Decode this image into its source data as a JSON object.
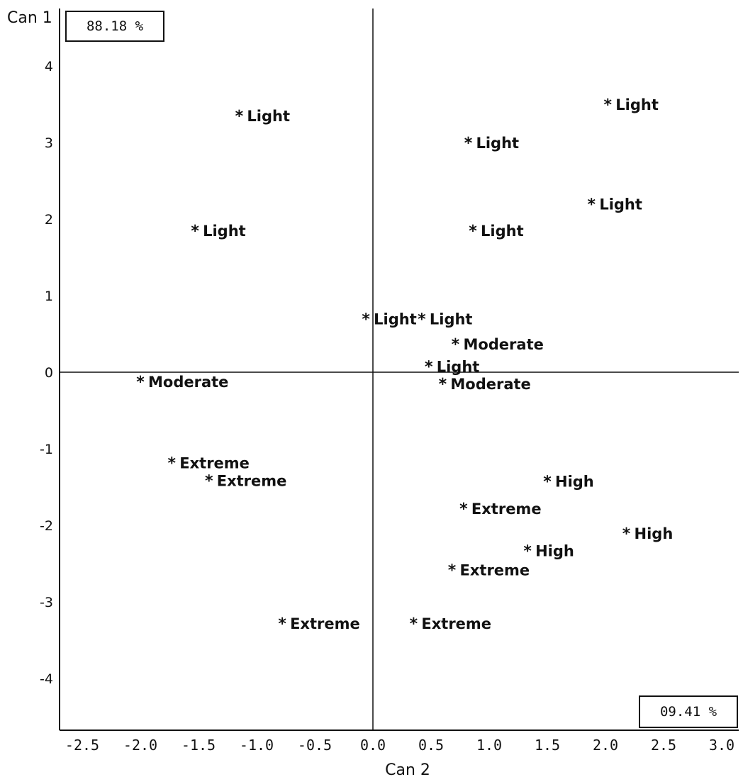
{
  "chart_data": {
    "type": "scatter",
    "xlabel": "Can 2",
    "ylabel": "Can 1",
    "xlim": [
      -2.7,
      3.1
    ],
    "ylim": [
      -4.7,
      4.8
    ],
    "x_ticks": [
      "-2.5",
      "-2.0",
      "-1.5",
      "-1.0",
      "-0.5",
      "0.0",
      "0.5",
      "1.0",
      "1.5",
      "2.0",
      "2.5",
      "3.0"
    ],
    "x_tick_values": [
      -2.5,
      -2.0,
      -1.5,
      -1.0,
      -0.5,
      0.0,
      0.5,
      1.0,
      1.5,
      2.0,
      2.5,
      3.0
    ],
    "y_ticks": [
      "4",
      "3",
      "2",
      "1",
      "0",
      "-1",
      "-2",
      "-3",
      "-4"
    ],
    "y_tick_values": [
      4,
      3,
      2,
      1,
      0,
      -1,
      -2,
      -3,
      -4
    ],
    "variance_boxes": {
      "can1": "88.18 %",
      "can2": "09.41 %"
    },
    "points": [
      {
        "x": -1.15,
        "y": 3.35,
        "label": "Light"
      },
      {
        "x": -1.53,
        "y": 1.85,
        "label": "Light"
      },
      {
        "x": 0.82,
        "y": 3.0,
        "label": "Light"
      },
      {
        "x": 2.02,
        "y": 3.5,
        "label": "Light"
      },
      {
        "x": 1.88,
        "y": 2.2,
        "label": "Light"
      },
      {
        "x": 0.86,
        "y": 1.85,
        "label": "Light"
      },
      {
        "x": -0.06,
        "y": 0.7,
        "label": "Light"
      },
      {
        "x": 0.42,
        "y": 0.7,
        "label": "Light"
      },
      {
        "x": 0.71,
        "y": 0.37,
        "label": "Moderate"
      },
      {
        "x": 0.48,
        "y": 0.08,
        "label": "Light"
      },
      {
        "x": 0.6,
        "y": -0.15,
        "label": "Moderate"
      },
      {
        "x": -2.0,
        "y": -0.12,
        "label": "Moderate"
      },
      {
        "x": -1.73,
        "y": -1.18,
        "label": "Extreme"
      },
      {
        "x": -1.41,
        "y": -1.41,
        "label": "Extreme"
      },
      {
        "x": 1.5,
        "y": -1.42,
        "label": "High"
      },
      {
        "x": 0.78,
        "y": -1.78,
        "label": "Extreme"
      },
      {
        "x": 2.18,
        "y": -2.1,
        "label": "High"
      },
      {
        "x": 1.33,
        "y": -2.33,
        "label": "High"
      },
      {
        "x": 0.68,
        "y": -2.58,
        "label": "Extreme"
      },
      {
        "x": -0.78,
        "y": -3.28,
        "label": "Extreme"
      },
      {
        "x": 0.35,
        "y": -3.28,
        "label": "Extreme"
      }
    ]
  }
}
